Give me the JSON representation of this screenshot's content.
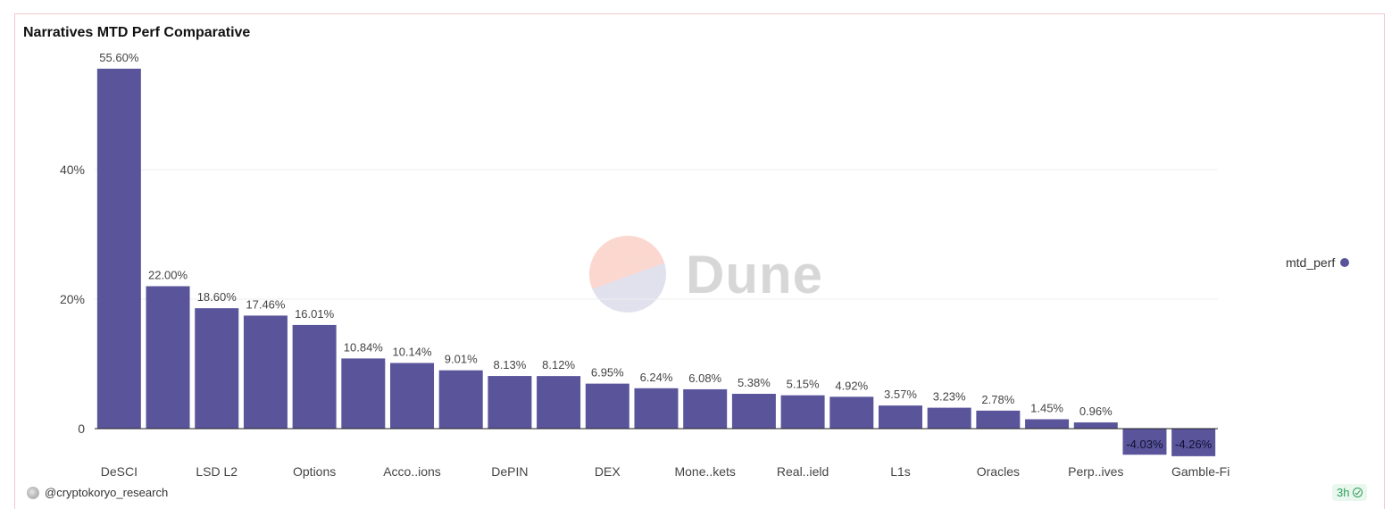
{
  "chart_data": {
    "type": "bar",
    "title": "Narratives MTD Perf Comparative",
    "xlabel": "",
    "ylabel": "",
    "ylim": [
      -5,
      57
    ],
    "y_ticks": [
      {
        "value": 0,
        "label": "0"
      },
      {
        "value": 20,
        "label": "20%"
      },
      {
        "value": 40,
        "label": "40%"
      }
    ],
    "categories": [
      "DeSCI",
      "",
      "LSD L2",
      "",
      "Options",
      "",
      "Acco..ions",
      "",
      "DePIN",
      "",
      "DEX",
      "",
      "Mone..kets",
      "",
      "Real..ield",
      "",
      "L1s",
      "",
      "Oracles",
      "",
      "Perp..ives",
      "",
      "Gamble-Fi"
    ],
    "series": [
      {
        "name": "mtd_perf",
        "color": "#5a559b",
        "values": [
          55.6,
          22.0,
          18.6,
          17.46,
          16.01,
          10.84,
          10.14,
          9.01,
          8.13,
          8.12,
          6.95,
          6.24,
          6.08,
          5.38,
          5.15,
          4.92,
          3.57,
          3.23,
          2.78,
          1.45,
          0.96,
          -4.03,
          -4.26
        ],
        "labels": [
          "55.60%",
          "22.00%",
          "18.60%",
          "17.46%",
          "16.01%",
          "10.84%",
          "10.14%",
          "9.01%",
          "8.13%",
          "8.12%",
          "6.95%",
          "6.24%",
          "6.08%",
          "5.38%",
          "5.15%",
          "4.92%",
          "3.57%",
          "3.23%",
          "2.78%",
          "1.45%",
          "0.96%",
          "-4.03%",
          "-4.26%"
        ]
      }
    ],
    "grid": true,
    "legend": "right"
  },
  "legend": {
    "label": "mtd_perf",
    "color": "#5a559b"
  },
  "watermark": {
    "text": "Dune"
  },
  "footer": {
    "username": "@cryptokoryo_research",
    "refresh": "3h"
  }
}
